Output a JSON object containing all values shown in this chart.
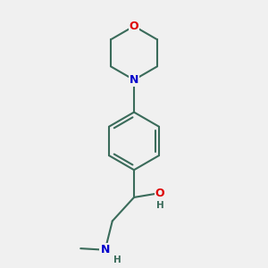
{
  "background_color": "#f0f0f0",
  "bond_color": "#3a6b5a",
  "bond_width": 1.5,
  "atom_colors": {
    "O": "#dd0000",
    "N": "#0000cc",
    "C": "#3a6b5a",
    "H": "#3a6b5a"
  },
  "font_size_large": 9,
  "font_size_small": 7.5,
  "figsize": [
    3.0,
    3.0
  ],
  "dpi": 100
}
